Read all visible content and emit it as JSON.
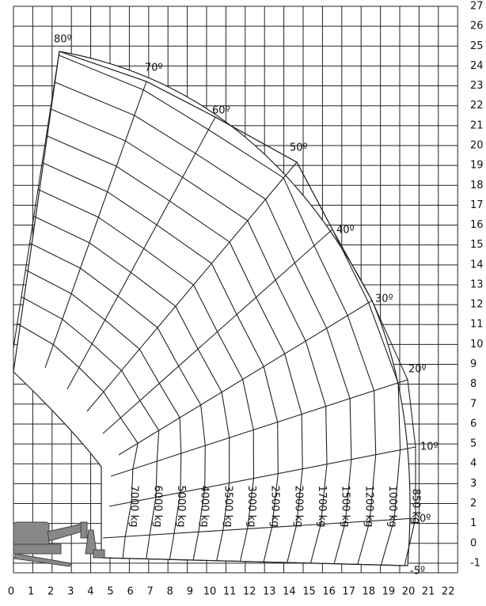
{
  "diagram": {
    "x_ticks": [
      "0",
      "1",
      "2",
      "3",
      "4",
      "5",
      "6",
      "7",
      "8",
      "9",
      "10",
      "11",
      "12",
      "13",
      "14",
      "15",
      "16",
      "17",
      "18",
      "19",
      "20",
      "21",
      "22"
    ],
    "y_ticks": [
      "27",
      "26",
      "25",
      "24",
      "23",
      "22",
      "21",
      "20",
      "19",
      "18",
      "17",
      "16",
      "15",
      "14",
      "13",
      "12",
      "11",
      "10",
      "9",
      "8",
      "7",
      "6",
      "5",
      "4",
      "3",
      "2",
      "1",
      "0",
      "-1"
    ],
    "angles": [
      "80º",
      "70º",
      "60º",
      "50º",
      "40º",
      "30º",
      "20º",
      "10º",
      "0º",
      "-5º"
    ],
    "loads": [
      "7000 kg",
      "6000 kg",
      "5000 kg",
      "4000 kg",
      "3500 kg",
      "3000 kg",
      "2500 kg",
      "2000 kg",
      "1700 kg",
      "1500 kg",
      "1200 kg",
      "1000 kg",
      "850 kg"
    ]
  }
}
